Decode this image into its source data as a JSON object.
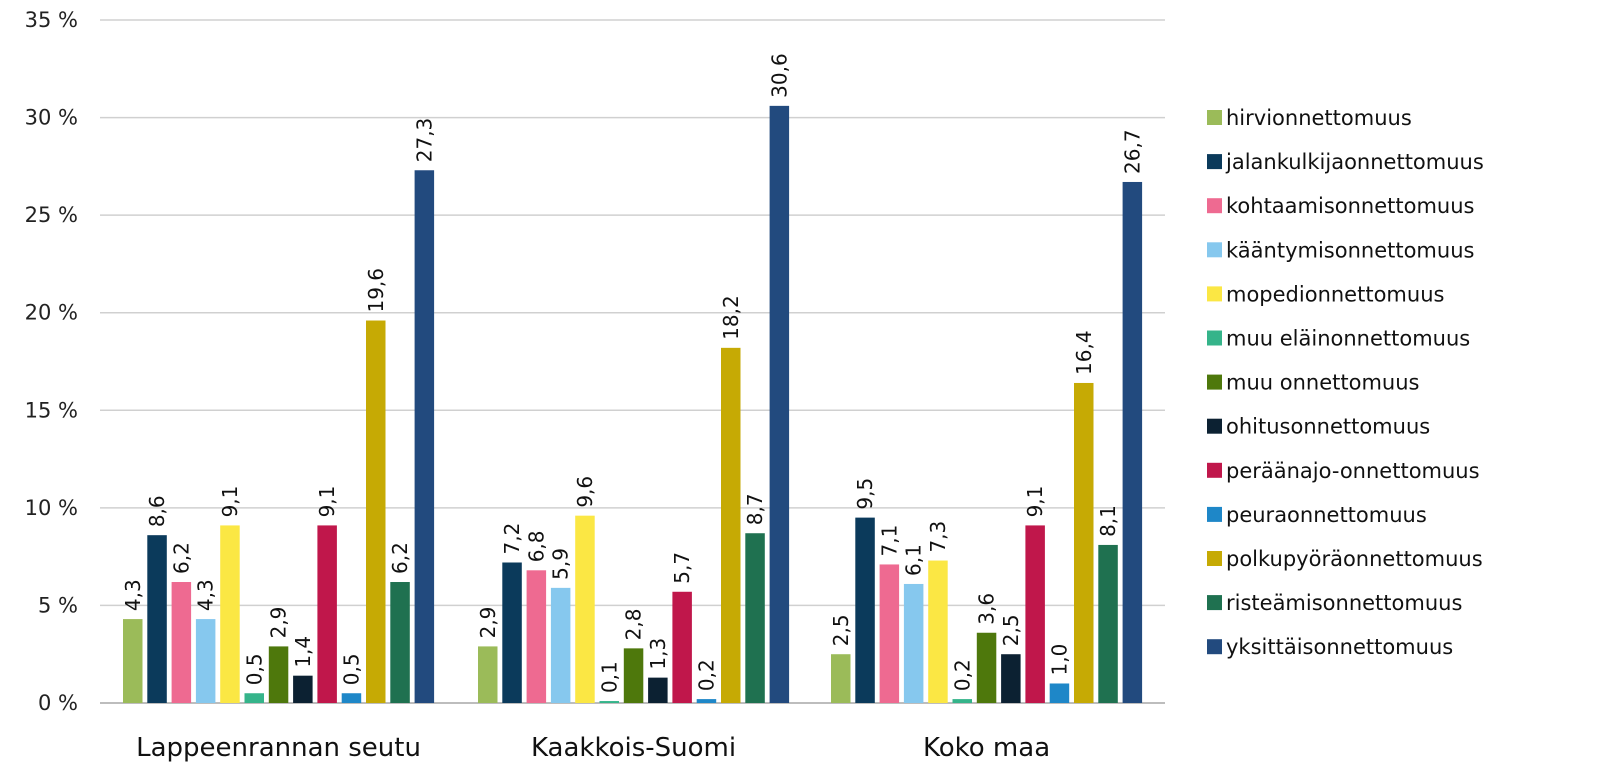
{
  "chart_data": {
    "type": "bar",
    "title": "",
    "xlabel": "",
    "ylabel": "",
    "ylim": [
      0,
      35
    ],
    "yticks": [
      "0 %",
      "5 %",
      "10 %",
      "15 %",
      "20 %",
      "25 %",
      "30 %",
      "35 %"
    ],
    "grid": true,
    "legend_position": "right",
    "categories": [
      "Lappeenrannan seutu",
      "Kaakkois-Suomi",
      "Koko maa"
    ],
    "series": [
      {
        "name": "hirvionnettomuus",
        "color": "#9bbb59",
        "values": [
          4.3,
          2.9,
          2.5
        ],
        "labels": [
          "4,3",
          "2,9",
          "2,5"
        ]
      },
      {
        "name": "jalankulkijaonnettomuus",
        "color": "#0b3a5b",
        "values": [
          8.6,
          7.2,
          9.5
        ],
        "labels": [
          "8,6",
          "7,2",
          "9,5"
        ]
      },
      {
        "name": "kohtaamisonnettomuus",
        "color": "#ee6a91",
        "values": [
          6.2,
          6.8,
          7.1
        ],
        "labels": [
          "6,2",
          "6,8",
          "7,1"
        ]
      },
      {
        "name": "kääntymisonnettomuus",
        "color": "#86c8ee",
        "values": [
          4.3,
          5.9,
          6.1
        ],
        "labels": [
          "4,3",
          "5,9",
          "6,1"
        ]
      },
      {
        "name": "mopedionnettomuus",
        "color": "#fbe744",
        "values": [
          9.1,
          9.6,
          7.3
        ],
        "labels": [
          "9,1",
          "9,6",
          "7,3"
        ]
      },
      {
        "name": "muu eläinonnettomuus",
        "color": "#35b48a",
        "values": [
          0.5,
          0.1,
          0.2
        ],
        "labels": [
          "0,5",
          "0,1",
          "0,2"
        ]
      },
      {
        "name": "muu onnettomuus",
        "color": "#4e780c",
        "values": [
          2.9,
          2.8,
          3.6
        ],
        "labels": [
          "2,9",
          "2,8",
          "3,6"
        ]
      },
      {
        "name": "ohitusonnettomuus",
        "color": "#0c2132",
        "values": [
          1.4,
          1.3,
          2.5
        ],
        "labels": [
          "1,4",
          "1,3",
          "2,5"
        ]
      },
      {
        "name": "peräänajo-onnettomuus",
        "color": "#c0174b",
        "values": [
          9.1,
          5.7,
          9.1
        ],
        "labels": [
          "9,1",
          "5,7",
          "9,1"
        ]
      },
      {
        "name": "peuraonnettomuus",
        "color": "#1e87c8",
        "values": [
          0.5,
          0.2,
          1.0
        ],
        "labels": [
          "0,5",
          "0,2",
          "1,0"
        ]
      },
      {
        "name": "polkupyöräonnettomuus",
        "color": "#c6aa04",
        "values": [
          19.6,
          18.2,
          16.4
        ],
        "labels": [
          "19,6",
          "18,2",
          "16,4"
        ]
      },
      {
        "name": "risteämisonnettomuus",
        "color": "#1f7150",
        "values": [
          6.2,
          8.7,
          8.1
        ],
        "labels": [
          "6,2",
          "8,7",
          "8,1"
        ]
      },
      {
        "name": "yksittäisonnettomuus",
        "color": "#224a7e",
        "values": [
          27.3,
          30.6,
          26.7
        ],
        "labels": [
          "27,3",
          "30,6",
          "26,7"
        ]
      }
    ]
  }
}
